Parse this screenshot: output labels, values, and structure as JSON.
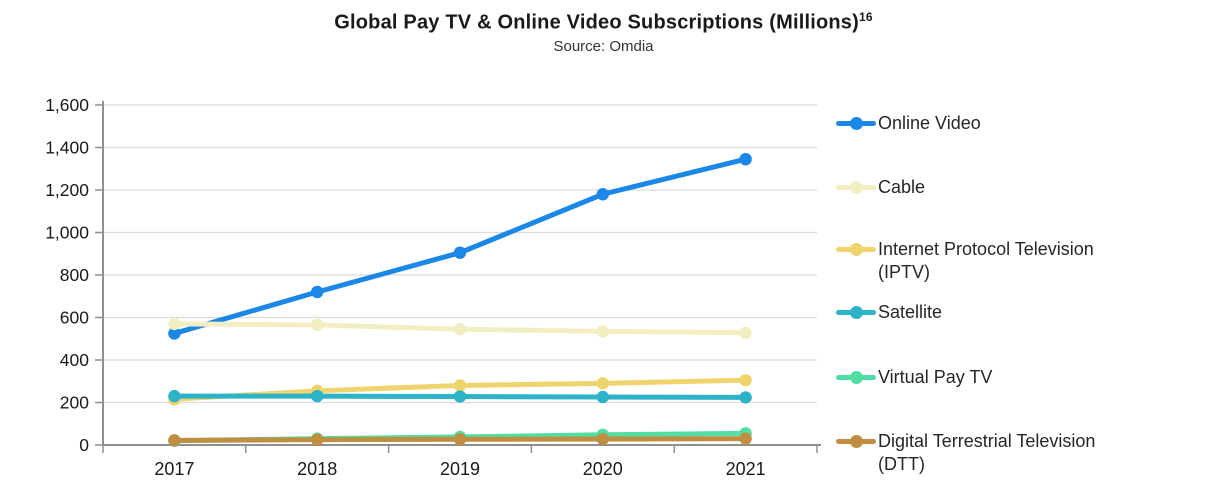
{
  "header": {
    "title": "Global Pay TV & Online Video Subscriptions (Millions)",
    "title_superscript": "16",
    "subtitle": "Source: Omdia"
  },
  "chart_data": {
    "type": "line",
    "x": [
      "2017",
      "2018",
      "2019",
      "2020",
      "2021"
    ],
    "series": [
      {
        "name": "Online Video",
        "legend_line1": "Online Video",
        "legend_line2": "",
        "color": "#1b87e6",
        "values": [
          525,
          720,
          905,
          1180,
          1345
        ]
      },
      {
        "name": "Cable",
        "legend_line1": "Cable",
        "legend_line2": "",
        "color": "#f2eec2",
        "values": [
          570,
          565,
          545,
          535,
          528
        ]
      },
      {
        "name": "Internet Protocol Television (IPTV)",
        "legend_line1": "Internet Protocol Television",
        "legend_line2": "(IPTV)",
        "color": "#efd46d",
        "values": [
          215,
          255,
          280,
          290,
          305
        ]
      },
      {
        "name": "Satellite",
        "legend_line1": "Satellite",
        "legend_line2": "",
        "color": "#2cb3c7",
        "values": [
          230,
          230,
          228,
          226,
          224
        ]
      },
      {
        "name": "Virtual Pay TV",
        "legend_line1": "Virtual Pay TV",
        "legend_line2": "",
        "color": "#52dda4",
        "values": [
          20,
          30,
          38,
          48,
          55
        ]
      },
      {
        "name": "Digital Terrestrial Television (DTT)",
        "legend_line1": "Digital Terrestrial Television",
        "legend_line2": "(DTT)",
        "color": "#bf8e41",
        "values": [
          22,
          25,
          27,
          28,
          30
        ]
      }
    ],
    "ylim": [
      0,
      1600
    ],
    "ytick_step": 200,
    "grid": true,
    "legend_position": "right",
    "axis_color": "#8f8f8f",
    "grid_color": "#dcdcdc",
    "tick_label_color": "#1a1a1a"
  }
}
